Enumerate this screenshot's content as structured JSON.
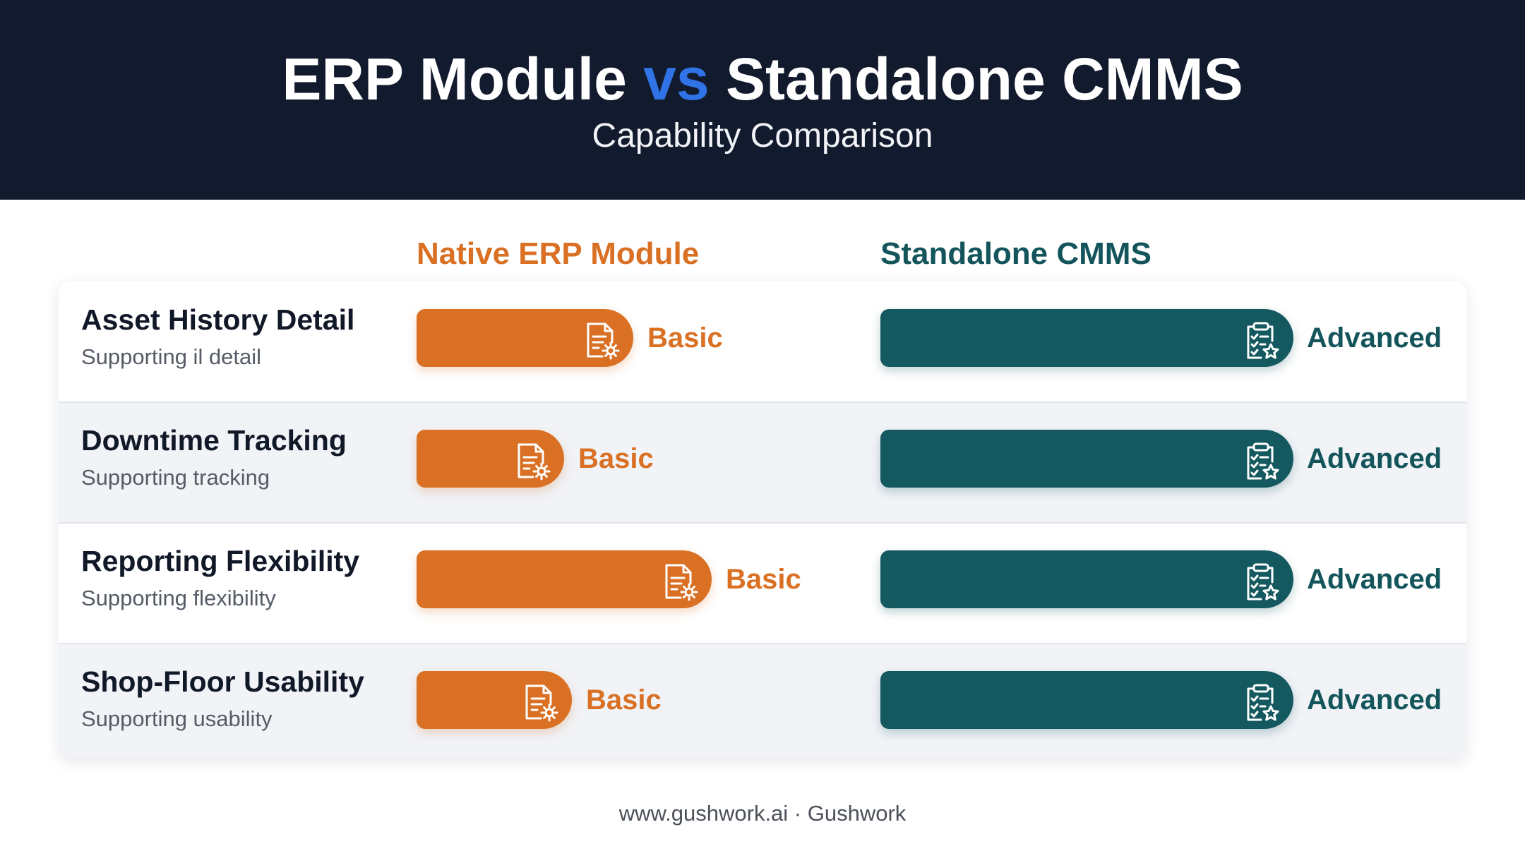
{
  "header": {
    "title_part1": "ERP Module",
    "title_vs": "vs",
    "title_part2": "Standalone CMMS",
    "subtitle": "Capability Comparison"
  },
  "columns": {
    "erp": "Native ERP Module",
    "cmms": "Standalone CMMS"
  },
  "chart_data": {
    "type": "bar",
    "title": "ERP Module vs Standalone CMMS",
    "subtitle": "Capability Comparison",
    "categories": [
      "Asset History Detail",
      "Downtime Tracking",
      "Reporting Flexibility",
      "Shop-Floor Usability"
    ],
    "category_subtitles": [
      "Supporting il detail",
      "Supporting tracking",
      "Supporting flexibility",
      "Supporting usability"
    ],
    "series": [
      {
        "name": "Native ERP Module",
        "values": [
          0.53,
          0.36,
          0.72,
          0.38
        ],
        "labels": [
          "Basic",
          "Basic",
          "Basic",
          "Basic"
        ],
        "color": "#d97024",
        "icon": "document-gear-icon"
      },
      {
        "name": "Standalone CMMS",
        "values": [
          1,
          1,
          1,
          1
        ],
        "labels": [
          "Advanced",
          "Advanced",
          "Advanced",
          "Advanced"
        ],
        "color": "#14595f",
        "icon": "clipboard-star-icon"
      }
    ],
    "orientation": "horizontal",
    "ylim": [
      0,
      1
    ],
    "grid": false,
    "legend": "top"
  },
  "footer": {
    "text": "www.gushwork.ai · Gushwork"
  }
}
